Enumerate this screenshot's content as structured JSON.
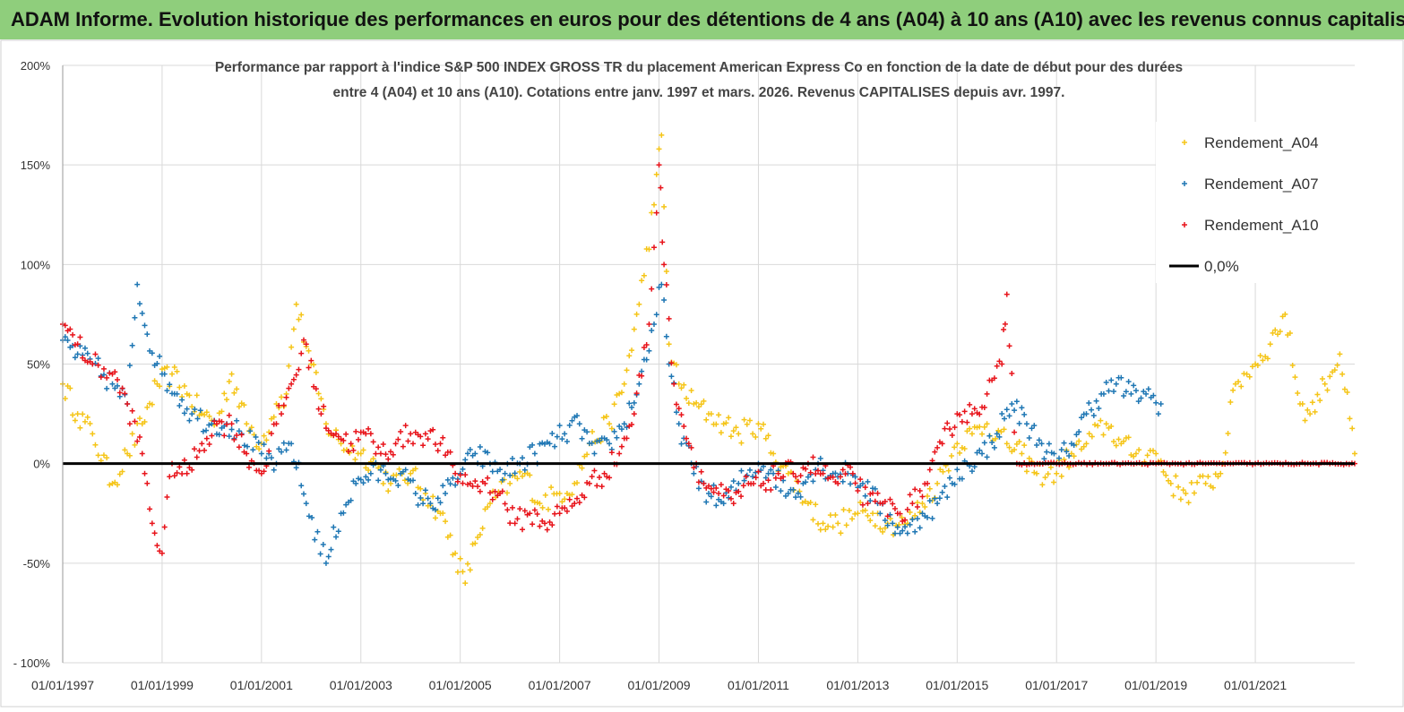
{
  "banner": {
    "title": "ADAM Informe. Evolution historique des performances en euros pour des détentions de 4 ans (A04) à 10 ans (A10) avec les revenus connus capitalisés"
  },
  "colors": {
    "a04": "#f5c518",
    "a07": "#1f77b4",
    "a10": "#e8141b",
    "zero": "#000000",
    "grid": "#d9d9d9",
    "banner": "#8fce7c"
  },
  "chart_data": {
    "type": "scatter",
    "title_line1": "Performance par rapport à l'indice S&P 500 INDEX GROSS TR  du placement American Express Co en fonction de la date de début pour des durées",
    "title_line2": "entre 4 (A04) et 10 ans (A10). Cotations entre janv. 1997 et mars. 2026. Revenus CAPITALISES depuis avr. 1997.",
    "xlabel": "",
    "ylabel": "",
    "xlim": [
      1997.0,
      2023.0
    ],
    "ylim": [
      -100,
      200
    ],
    "y_ticks": [
      {
        "value": 200,
        "label": "200%"
      },
      {
        "value": 150,
        "label": "150%"
      },
      {
        "value": 100,
        "label": "100%"
      },
      {
        "value": 50,
        "label": "50%"
      },
      {
        "value": 0,
        "label": "0%"
      },
      {
        "value": -50,
        "label": "-50%"
      },
      {
        "value": -100,
        "label": "- 100%"
      }
    ],
    "x_ticks": [
      {
        "value": 1997,
        "label": "01/01/1997"
      },
      {
        "value": 1999,
        "label": "01/01/1999"
      },
      {
        "value": 2001,
        "label": "01/01/2001"
      },
      {
        "value": 2003,
        "label": "01/01/2003"
      },
      {
        "value": 2005,
        "label": "01/01/2005"
      },
      {
        "value": 2007,
        "label": "01/01/2007"
      },
      {
        "value": 2009,
        "label": "01/01/2009"
      },
      {
        "value": 2011,
        "label": "01/01/2011"
      },
      {
        "value": 2013,
        "label": "01/01/2013"
      },
      {
        "value": 2015,
        "label": "01/01/2015"
      },
      {
        "value": 2017,
        "label": "01/01/2017"
      },
      {
        "value": 2019,
        "label": "01/01/2019"
      },
      {
        "value": 2021,
        "label": "01/01/2021"
      }
    ],
    "legend_position": "top-right",
    "legend": [
      "Rendement_A04",
      "Rendement_A07",
      "Rendement_A10",
      "0,0%"
    ],
    "series": [
      {
        "name": "Rendement_A04",
        "x": [
          1997.0,
          1997.3,
          1997.6,
          1998.0,
          1998.3,
          1998.6,
          1998.9,
          1999.2,
          1999.5,
          1999.8,
          2000.1,
          2000.4,
          2000.7,
          2001.0,
          2001.3,
          2001.5,
          2001.7,
          2002.0,
          2002.3,
          2002.6,
          2003.0,
          2003.3,
          2003.6,
          2004.0,
          2004.3,
          2004.6,
          2004.9,
          2005.1,
          2005.3,
          2005.6,
          2006.0,
          2006.3,
          2006.6,
          2007.0,
          2007.3,
          2007.6,
          2008.0,
          2008.3,
          2008.6,
          2008.9,
          2009.05,
          2009.2,
          2009.4,
          2009.7,
          2010.0,
          2010.3,
          2010.6,
          2011.0,
          2011.3,
          2011.6,
          2012.0,
          2012.3,
          2012.6,
          2013.0,
          2013.3,
          2013.6,
          2014.0,
          2014.3,
          2014.6,
          2015.0,
          2015.3,
          2015.6,
          2016.0,
          2016.3,
          2016.6,
          2017.0,
          2017.3,
          2017.6,
          2018.0,
          2018.3,
          2018.6,
          2019.0,
          2019.3,
          2019.6,
          2020.0,
          2020.3,
          2020.6,
          2021.0,
          2021.3,
          2021.6,
          2021.9,
          2022.1,
          2022.4,
          2022.7,
          2023.0
        ],
        "values": [
          40,
          25,
          15,
          -10,
          5,
          20,
          40,
          45,
          35,
          25,
          20,
          45,
          20,
          10,
          30,
          35,
          80,
          50,
          20,
          10,
          5,
          0,
          -10,
          -5,
          -15,
          -25,
          -45,
          -60,
          -40,
          -20,
          -10,
          -5,
          -20,
          -15,
          -10,
          10,
          20,
          40,
          80,
          130,
          165,
          60,
          40,
          30,
          25,
          20,
          15,
          20,
          5,
          -5,
          -20,
          -30,
          -30,
          -25,
          -25,
          -30,
          -30,
          -20,
          -10,
          10,
          15,
          20,
          10,
          5,
          -5,
          -5,
          5,
          10,
          20,
          10,
          5,
          5,
          -10,
          -15,
          -10,
          -5,
          40,
          50,
          60,
          75,
          30,
          25,
          40,
          55,
          5
        ]
      },
      {
        "name": "Rendement_A07",
        "x": [
          1997.0,
          1997.3,
          1997.6,
          1998.0,
          1998.3,
          1998.5,
          1998.7,
          1999.0,
          1999.3,
          1999.6,
          2000.0,
          2000.3,
          2000.6,
          2001.0,
          2001.3,
          2001.6,
          2001.9,
          2002.3,
          2002.6,
          2002.9,
          2003.2,
          2003.5,
          2003.8,
          2004.1,
          2004.4,
          2004.7,
          2005.0,
          2005.3,
          2005.6,
          2005.9,
          2006.2,
          2006.5,
          2006.8,
          2007.1,
          2007.4,
          2007.7,
          2008.0,
          2008.3,
          2008.6,
          2008.9,
          2009.05,
          2009.2,
          2009.4,
          2009.7,
          2010.0,
          2010.3,
          2010.6,
          2011.0,
          2011.3,
          2011.6,
          2011.9,
          2012.2,
          2012.5,
          2012.8,
          2013.1,
          2013.4,
          2013.7,
          2014.0,
          2014.3,
          2014.6,
          2014.9,
          2015.2,
          2015.5,
          2015.8,
          2016.1,
          2016.4,
          2016.7,
          2017.0,
          2017.3,
          2017.6,
          2017.9,
          2018.2,
          2018.5,
          2018.8,
          2019.1
        ],
        "values": [
          62,
          55,
          50,
          40,
          30,
          90,
          65,
          45,
          35,
          25,
          20,
          20,
          15,
          5,
          0,
          10,
          -20,
          -50,
          -25,
          -10,
          -5,
          -5,
          -5,
          -15,
          -20,
          -15,
          -5,
          5,
          0,
          -5,
          0,
          5,
          10,
          15,
          20,
          5,
          10,
          20,
          40,
          70,
          90,
          50,
          20,
          -5,
          -15,
          -20,
          -10,
          0,
          -5,
          -15,
          -10,
          0,
          -5,
          -5,
          -10,
          -20,
          -30,
          -35,
          -25,
          -20,
          -10,
          0,
          5,
          15,
          30,
          20,
          10,
          0,
          10,
          25,
          35,
          40,
          35,
          35,
          30
        ]
      },
      {
        "name": "Rendement_A10",
        "x": [
          1997.0,
          1997.3,
          1997.6,
          1998.0,
          1998.3,
          1998.6,
          1998.8,
          1999.0,
          1999.2,
          1999.5,
          1999.8,
          2000.1,
          2000.4,
          2000.7,
          2001.0,
          2001.3,
          2001.6,
          2001.9,
          2002.2,
          2002.5,
          2002.8,
          2003.1,
          2003.4,
          2003.7,
          2004.0,
          2004.3,
          2004.6,
          2004.9,
          2005.2,
          2005.5,
          2005.8,
          2006.1,
          2006.4,
          2006.7,
          2007.0,
          2007.3,
          2007.6,
          2007.9,
          2008.2,
          2008.5,
          2008.8,
          2009.0,
          2009.1,
          2009.3,
          2009.6,
          2009.9,
          2010.2,
          2010.5,
          2010.8,
          2011.1,
          2011.4,
          2011.7,
          2012.0,
          2012.3,
          2012.6,
          2012.9,
          2013.2,
          2013.5,
          2013.8,
          2014.1,
          2014.4,
          2014.7,
          2015.0,
          2015.3,
          2015.6,
          2015.9,
          2016.0,
          2016.2,
          2016.5,
          2017.0,
          2017.5,
          2018.0,
          2018.5,
          2019.0,
          2019.5,
          2020.0,
          2020.5,
          2021.0,
          2021.5,
          2022.0,
          2022.5,
          2023.0
        ],
        "values": [
          70,
          60,
          50,
          45,
          30,
          5,
          -30,
          -45,
          0,
          -5,
          10,
          20,
          20,
          5,
          -5,
          20,
          40,
          60,
          25,
          15,
          10,
          15,
          5,
          10,
          15,
          15,
          10,
          -5,
          -10,
          -10,
          -15,
          -30,
          -25,
          -30,
          -25,
          -20,
          -10,
          -5,
          5,
          25,
          70,
          150,
          100,
          40,
          10,
          -10,
          -15,
          -20,
          -10,
          -10,
          -5,
          -5,
          0,
          -5,
          -10,
          -5,
          -20,
          -20,
          -25,
          -20,
          -10,
          10,
          25,
          25,
          35,
          50,
          85,
          0,
          0,
          0,
          0,
          0,
          0,
          0,
          0,
          0,
          0,
          0,
          0,
          0,
          0,
          0
        ]
      }
    ]
  }
}
